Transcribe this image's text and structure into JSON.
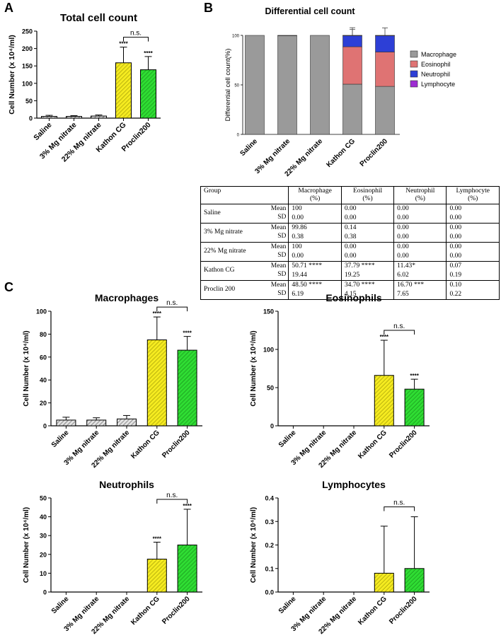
{
  "panel_letters": {
    "a": "A",
    "b": "B",
    "c": "C"
  },
  "chart_data": [
    {
      "id": "totalCount",
      "type": "bar",
      "title": "Total cell count",
      "ylabel": "Cell Number (x 10⁴/ml)",
      "ylim": [
        0,
        250
      ],
      "yticks": [
        0,
        50,
        100,
        150,
        200,
        250
      ],
      "categories": [
        "Saline",
        "3% Mg nitrate",
        "22% Mg nitrate",
        "Kathon CG",
        "Proclin200"
      ],
      "values": [
        5,
        5,
        6,
        159,
        139
      ],
      "errors": [
        3,
        2,
        3,
        45,
        38
      ],
      "significance": [
        "",
        "",
        "",
        "****",
        "****"
      ],
      "comparison": {
        "from": 3,
        "to": 4,
        "label": "n.s."
      }
    },
    {
      "id": "differential",
      "type": "stacked_bar",
      "title": "Differential cell count",
      "ylabel": "Differential cell count(%)",
      "ylim": [
        0,
        100
      ],
      "yticks": [
        0,
        50,
        100
      ],
      "categories": [
        "Saline",
        "3% Mg nitrate",
        "22% Mg nitrate",
        "Kathon CG",
        "Proclin200"
      ],
      "series": [
        {
          "name": "Macrophage",
          "color": "#9a9a9a",
          "values": [
            100,
            99.86,
            100,
            50.71,
            48.5
          ],
          "errors": [
            0,
            0.38,
            0,
            19.44,
            6.19
          ]
        },
        {
          "name": "Eosinophil",
          "color": "#df7373",
          "values": [
            0,
            0.14,
            0,
            37.79,
            34.7
          ],
          "errors": [
            0,
            0.38,
            0,
            19.25,
            4.15
          ]
        },
        {
          "name": "Neutrophil",
          "color": "#2d3fd6",
          "values": [
            0,
            0,
            0,
            11.43,
            16.7
          ],
          "errors": [
            0,
            0,
            0,
            6.02,
            7.65
          ]
        },
        {
          "name": "Lymphocyte",
          "color": "#9e2cd3",
          "values": [
            0,
            0,
            0,
            0.07,
            0.1
          ],
          "errors": [
            0,
            0,
            0,
            0.19,
            0.22
          ]
        }
      ]
    },
    {
      "id": "macrophages",
      "type": "bar",
      "title": "Macrophages",
      "ylabel": "Cell Number (x 10⁴/ml)",
      "ylim": [
        0,
        100
      ],
      "yticks": [
        0,
        20,
        40,
        60,
        80,
        100
      ],
      "categories": [
        "Saline",
        "3% Mg nitrate",
        "22% Mg nitrate",
        "Kathon CG",
        "Proclin200"
      ],
      "values": [
        5,
        5,
        6,
        75,
        66
      ],
      "errors": [
        2.5,
        2,
        3,
        20,
        12
      ],
      "significance": [
        "",
        "",
        "",
        "****",
        "****"
      ],
      "comparison": {
        "from": 3,
        "to": 4,
        "label": "n.s."
      }
    },
    {
      "id": "eosinophils",
      "type": "bar",
      "title": "Eosinophils",
      "ylabel": "Cell Number (x 10⁴/ml)",
      "ylim": [
        0,
        150
      ],
      "yticks": [
        0,
        50,
        100,
        150
      ],
      "categories": [
        "Saline",
        "3% Mg nitrate",
        "22% Mg nitrate",
        "Kathon CG",
        "Proclin200"
      ],
      "values": [
        0,
        0,
        0,
        66,
        48
      ],
      "errors": [
        0,
        0,
        0,
        46,
        13
      ],
      "significance": [
        "",
        "",
        "",
        "****",
        "****"
      ],
      "comparison": {
        "from": 3,
        "to": 4,
        "label": "n.s."
      }
    },
    {
      "id": "neutrophils",
      "type": "bar",
      "title": "Neutrophils",
      "ylabel": "Cell Number (x 10⁴/ml)",
      "ylim": [
        0,
        50
      ],
      "yticks": [
        0,
        10,
        20,
        30,
        40,
        50
      ],
      "categories": [
        "Saline",
        "3% Mg nitrate",
        "22% Mg nitrate",
        "Kathon CG",
        "Proclin200"
      ],
      "values": [
        0,
        0,
        0,
        17.5,
        25
      ],
      "errors": [
        0,
        0,
        0,
        9,
        19
      ],
      "significance": [
        "",
        "",
        "",
        "****",
        "****"
      ],
      "comparison": {
        "from": 3,
        "to": 4,
        "label": "n.s."
      }
    },
    {
      "id": "lymphocytes",
      "type": "bar",
      "title": "Lymphocytes",
      "ylabel": "Cell Number (x 10⁴/ml)",
      "ylim": [
        0,
        0.4
      ],
      "yticks": [
        0.0,
        0.1,
        0.2,
        0.3,
        0.4
      ],
      "ytick_decimals": 1,
      "categories": [
        "Saline",
        "3% Mg nitrate",
        "22% Mg nitrate",
        "Kathon CG",
        "Proclin200"
      ],
      "values": [
        0,
        0,
        0,
        0.08,
        0.1
      ],
      "errors": [
        0,
        0,
        0,
        0.2,
        0.22
      ],
      "significance": [
        "",
        "",
        "",
        "",
        ""
      ],
      "comparison": {
        "from": 3,
        "to": 4,
        "label": "n.s."
      }
    }
  ],
  "table": {
    "headers": [
      {
        "line1": "Group",
        "line2": ""
      },
      {
        "line1": "Macrophage",
        "line2": "(%)"
      },
      {
        "line1": "Eosinophil",
        "line2": "(%)"
      },
      {
        "line1": "Neutrophil",
        "line2": "(%)"
      },
      {
        "line1": "Lymphocyte",
        "line2": "(%)"
      }
    ],
    "stat_labels": {
      "mean": "Mean",
      "sd": "SD"
    },
    "rows": [
      {
        "group": "Saline",
        "mean": [
          "100",
          "0.00",
          "0.00",
          "0.00"
        ],
        "sd": [
          "0.00",
          "0.00",
          "0.00",
          "0.00"
        ]
      },
      {
        "group": "3% Mg nitrate",
        "mean": [
          "99.86",
          "0.14",
          "0.00",
          "0.00"
        ],
        "sd": [
          "0.38",
          "0.38",
          "0.00",
          "0.00"
        ]
      },
      {
        "group": "22% Mg nitrate",
        "mean": [
          "100",
          "0.00",
          "0.00",
          "0.00"
        ],
        "sd": [
          "0.00",
          "0.00",
          "0.00",
          "0.00"
        ]
      },
      {
        "group": "Kathon CG",
        "mean": [
          "50.71 ****",
          "37.79 ****",
          "11.43*",
          "0.07"
        ],
        "sd": [
          "19.44",
          "19.25",
          "6.02",
          "0.19"
        ]
      },
      {
        "group": "Proclin 200",
        "mean": [
          "48.50 ****",
          "34.70 ****",
          "16.70 ***",
          "0.10"
        ],
        "sd": [
          "6.19",
          "4.15",
          "7.65",
          "0.22"
        ]
      }
    ]
  },
  "colors": {
    "saline": "#d9d9d9",
    "mg3": "#d9d9d9",
    "mg22": "#d9d9d9",
    "kathon": "#f1e71d",
    "proclin": "#27d52a"
  }
}
